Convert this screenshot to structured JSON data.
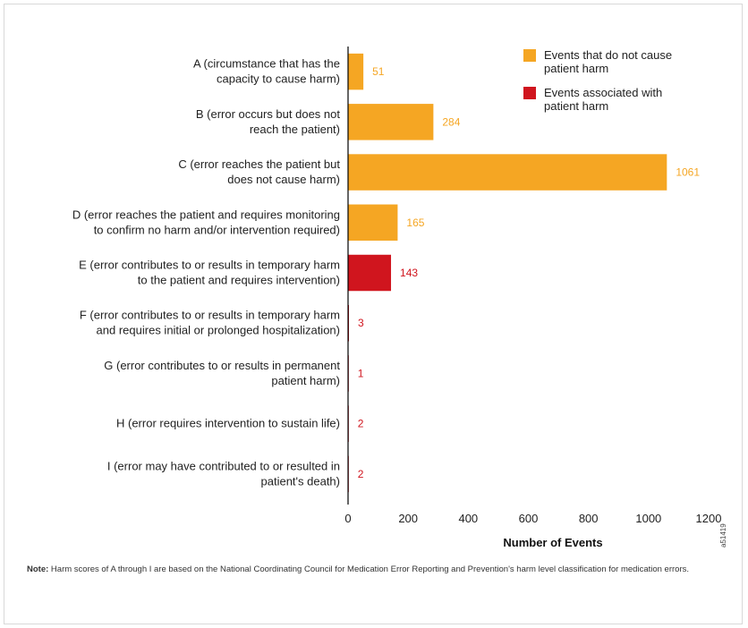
{
  "chart_data": {
    "type": "bar",
    "orientation": "horizontal",
    "categories": [
      [
        "A (circumstance that has the",
        "capacity to cause harm)"
      ],
      [
        "B (error occurs but does not",
        "reach the patient)"
      ],
      [
        "C (error reaches the patient but",
        "does not cause harm)"
      ],
      [
        "D (error reaches the patient and requires monitoring",
        "to confirm no harm and/or intervention required)"
      ],
      [
        "E (error contributes to or results in temporary harm",
        "to the patient and requires intervention)"
      ],
      [
        "F (error contributes to or results in temporary harm",
        "and requires initial or prolonged hospitalization)"
      ],
      [
        "G (error contributes to or results in permanent",
        "patient harm)"
      ],
      [
        "H (error requires intervention to sustain life)"
      ],
      [
        "I (error may have contributed to or resulted in",
        "patient's death)"
      ]
    ],
    "values": [
      51,
      284,
      1061,
      165,
      143,
      3,
      1,
      2,
      2
    ],
    "value_labels": [
      "51",
      "284",
      "1061",
      "165",
      "143",
      "3",
      "1",
      "2",
      "2"
    ],
    "series_index": [
      0,
      0,
      0,
      0,
      1,
      1,
      1,
      1,
      1
    ],
    "series": [
      {
        "name": "Events that do not cause patient harm",
        "name_lines": [
          "Events that do not cause",
          "patient harm"
        ],
        "color": "#f5a623"
      },
      {
        "name": "Events associated with patient harm",
        "name_lines": [
          "Events associated with",
          "patient harm"
        ],
        "color": "#d0151e"
      }
    ],
    "xlabel": "Number of Events",
    "xlim": [
      0,
      1200
    ],
    "xticks": [
      0,
      200,
      400,
      600,
      800,
      1000,
      1200
    ],
    "grid": false,
    "legend_position": "top-right"
  },
  "note": {
    "bold": "Note:",
    "text": " Harm scores of A through I are based on the National Coordinating Council for Medication Error Reporting and Prevention's harm level classification for medication errors."
  },
  "figure_code": "a51419"
}
